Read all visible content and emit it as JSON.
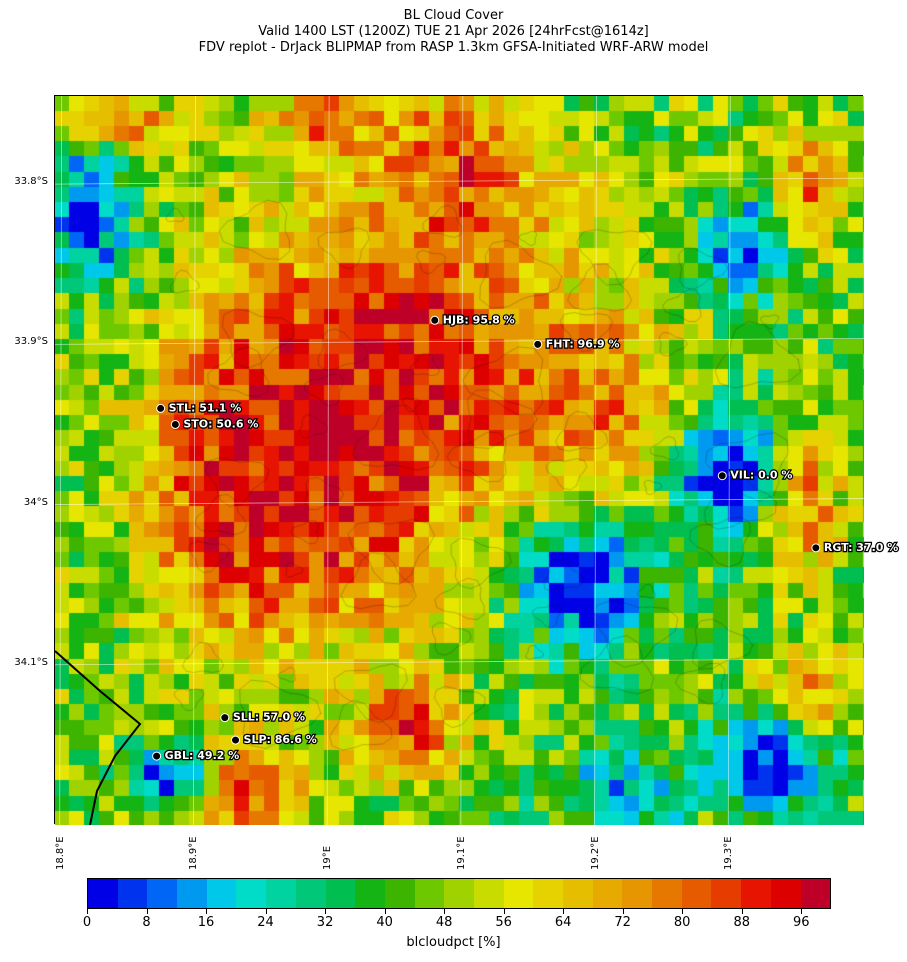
{
  "title": {
    "line1": "BL Cloud Cover",
    "line2": "Valid 1400 LST (1200Z) TUE 21 Apr 2026 [24hrFcst@1614z]",
    "line3": "FDV replot - DrJack BLIPMAP from RASP 1.3km GFSA-Initiated WRF-ARW model"
  },
  "map": {
    "lon_range": [
      18.795,
      19.4
    ],
    "lat_range": [
      -34.2,
      -33.745
    ],
    "lat_ticks": [
      {
        "value": -33.8,
        "label": "33.8°S"
      },
      {
        "value": -33.9,
        "label": "33.9°S"
      },
      {
        "value": -34.0,
        "label": "34°S"
      },
      {
        "value": -34.1,
        "label": "34.1°S"
      }
    ],
    "lon_ticks": [
      {
        "value": 18.8,
        "label": "18.8°E"
      },
      {
        "value": 18.9,
        "label": "18.9°E"
      },
      {
        "value": 19.0,
        "label": "19°E"
      },
      {
        "value": 19.1,
        "label": "19.1°E"
      },
      {
        "value": 19.2,
        "label": "19.2°E"
      },
      {
        "value": 19.3,
        "label": "19.3°E"
      }
    ],
    "field_description": "blcloudpct grid (approx.), ~0.011° lon by ~0.01° lat cells",
    "stations": [
      {
        "code": "HJB",
        "label": "HJB: 95.8 %",
        "value": 95.8,
        "lon": 19.079,
        "lat": -33.885
      },
      {
        "code": "FHT",
        "label": "FHT: 96.9 %",
        "value": 96.9,
        "lon": 19.156,
        "lat": -33.9
      },
      {
        "code": "STL",
        "label": "STL: 51.1 %",
        "value": 51.1,
        "lon": 18.874,
        "lat": -33.94
      },
      {
        "code": "STO",
        "label": "STO: 50.6 %",
        "value": 50.6,
        "lon": 18.885,
        "lat": -33.95
      },
      {
        "code": "VIL",
        "label": "VIL: 0.0 %",
        "value": 0.0,
        "lon": 19.294,
        "lat": -33.982
      },
      {
        "code": "RGT",
        "label": "RGT: 37.0 %",
        "value": 37.0,
        "lon": 19.364,
        "lat": -34.027
      },
      {
        "code": "SLL",
        "label": "SLL: 57.0 %",
        "value": 57.0,
        "lon": 18.922,
        "lat": -34.133
      },
      {
        "code": "SLP",
        "label": "SLP: 86.6 %",
        "value": 86.6,
        "lon": 18.93,
        "lat": -34.147
      },
      {
        "code": "GBL",
        "label": "GBL: 49.2 %",
        "value": 49.2,
        "lon": 18.871,
        "lat": -34.157
      }
    ]
  },
  "colorbar": {
    "title": "blcloudpct [%]",
    "min": 0,
    "max": 100,
    "step": 4,
    "tick_labels": [
      "0",
      "8",
      "16",
      "24",
      "32",
      "40",
      "48",
      "56",
      "64",
      "72",
      "80",
      "88",
      "96"
    ],
    "colors": [
      "#0000e6",
      "#0033ee",
      "#0066f5",
      "#0099f0",
      "#00c8e8",
      "#00dcc8",
      "#00d2a0",
      "#00c878",
      "#00be50",
      "#14b414",
      "#3cb400",
      "#6ec800",
      "#a0d200",
      "#c8dc00",
      "#e6e600",
      "#e6d200",
      "#e6be00",
      "#e6aa00",
      "#e69600",
      "#e67800",
      "#e65a00",
      "#e63c00",
      "#e61400",
      "#dc0000",
      "#be0028"
    ]
  }
}
